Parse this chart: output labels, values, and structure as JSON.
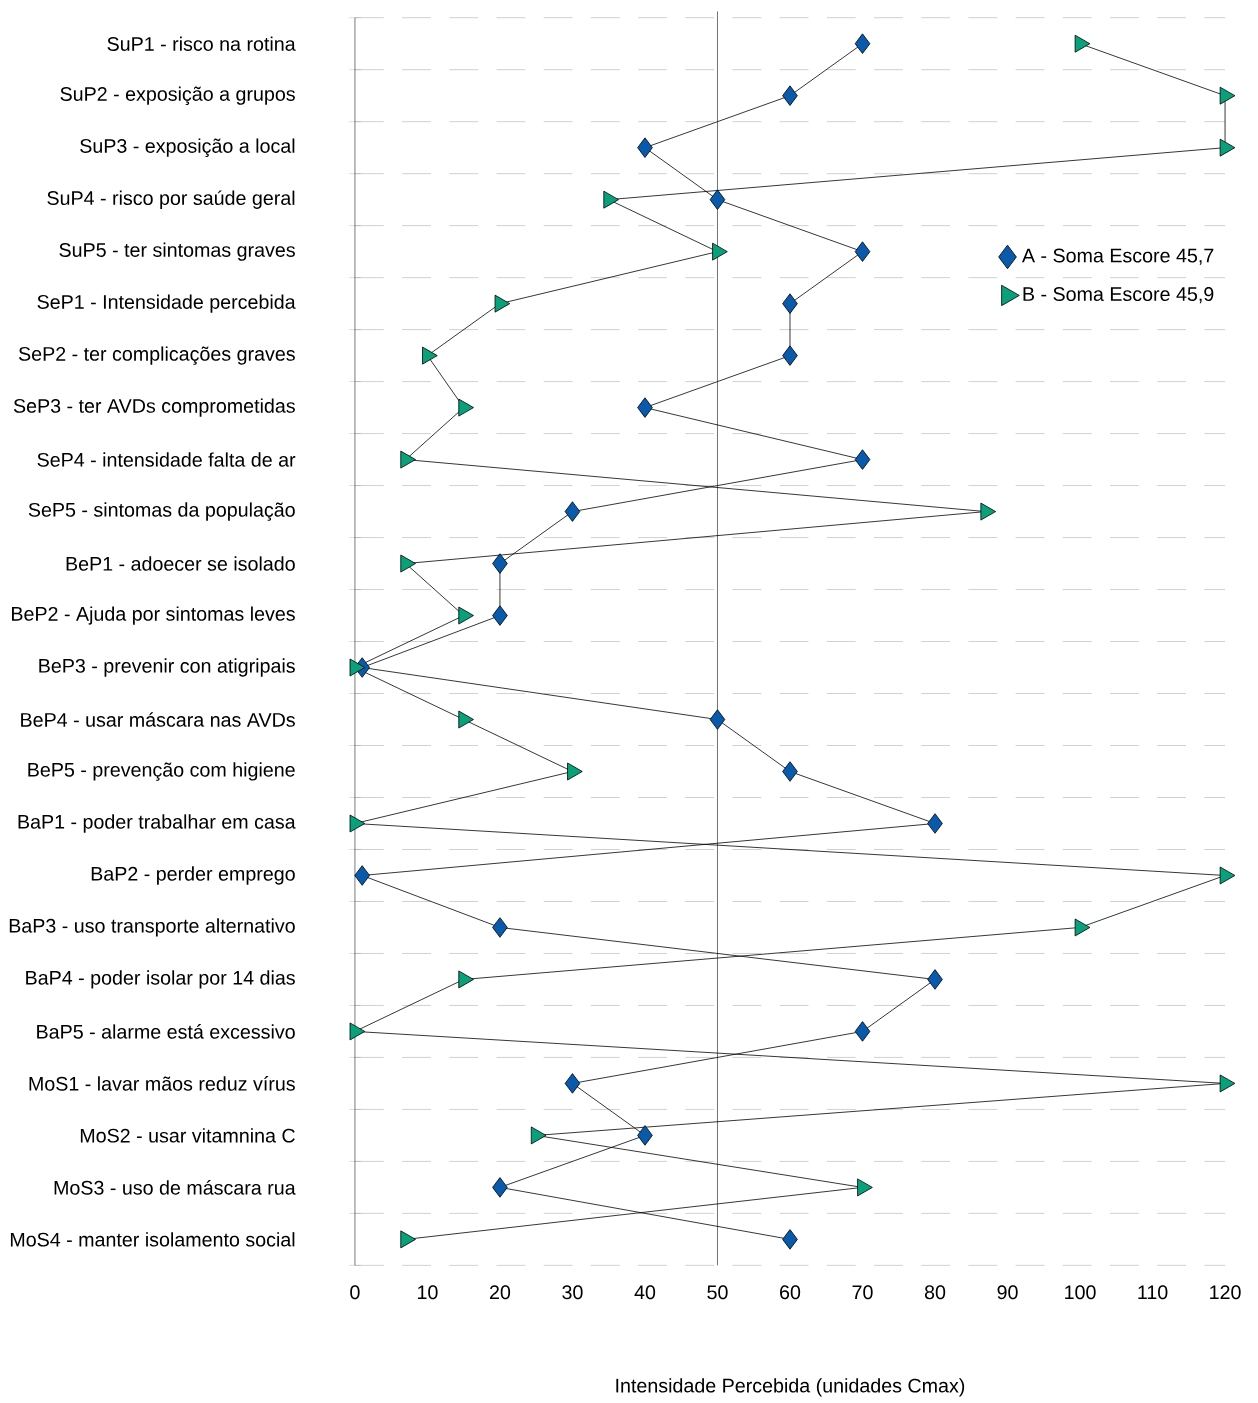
{
  "chart_data": {
    "type": "line",
    "orientation": "horizontal",
    "xlabel": "Intensidade Percebida (unidades Cmax)",
    "categories": [
      "SuP1 - risco na rotina",
      "SuP2 - exposição a grupos",
      "SuP3 - exposição a local",
      "SuP4 - risco por saúde geral",
      "SuP5 - ter sintomas graves",
      "SeP1 - Intensidade percebida",
      "SeP2 - ter complicações graves",
      "SeP3 - ter AVDs comprometidas",
      "SeP4 - intensidade falta de ar",
      "SeP5 - sintomas da população",
      "BeP1 - adoecer se isolado",
      "BeP2 - Ajuda por sintomas leves",
      "BeP3 - prevenir con atigripais",
      "BeP4 - usar máscara nas AVDs",
      "BeP5 - prevenção com higiene",
      "BaP1 - poder trabalhar em casa",
      "BaP2 - perder emprego",
      "BaP3 - uso transporte alternativo",
      "BaP4 - poder isolar por 14 dias",
      "BaP5 - alarme está excessivo",
      "MoS1 - lavar mãos reduz vírus",
      "MoS2 - usar vitamnina C",
      "MoS3 - uso de máscara rua",
      "MoS4 - manter isolamento social"
    ],
    "series": [
      {
        "name": "A - Soma Escore 45,7",
        "color": "#0a5aab",
        "marker": "diamond",
        "values": [
          70,
          60,
          40,
          50,
          70,
          60,
          60,
          40,
          70,
          30,
          20,
          20,
          1,
          50,
          60,
          80,
          1,
          20,
          80,
          70,
          30,
          40,
          20,
          60
        ]
      },
      {
        "name": "B - Soma Escore 45,9",
        "color": "#0aa07a",
        "marker": "triangle",
        "values": [
          100,
          120,
          120,
          35,
          50,
          20,
          10,
          15,
          7,
          87,
          7,
          15,
          0,
          15,
          30,
          0,
          120,
          100,
          15,
          0,
          120,
          25,
          70,
          7
        ]
      }
    ],
    "xlim": [
      0,
      120
    ],
    "xticks": [
      0,
      10,
      20,
      30,
      40,
      50,
      60,
      70,
      80,
      90,
      100,
      110,
      120
    ],
    "ref_lines": [
      {
        "axis": "x",
        "value": 50
      }
    ],
    "grid": "y",
    "legend": "right"
  }
}
